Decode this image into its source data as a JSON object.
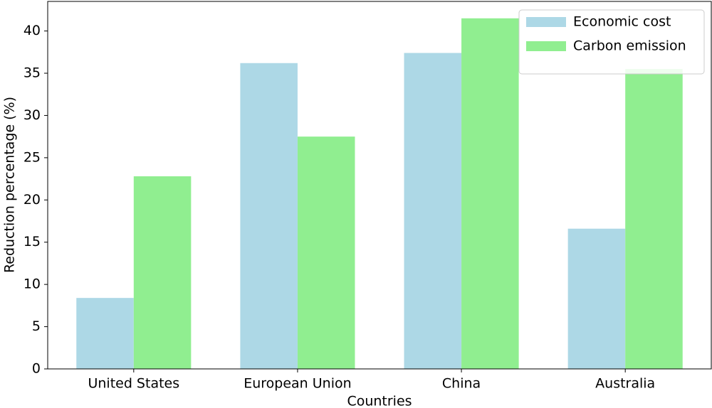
{
  "chart_data": {
    "type": "bar",
    "x_label": "Countries",
    "y_label": "Reduction percentage (%)",
    "categories": [
      "United States",
      "European Union",
      "China",
      "Australia"
    ],
    "series": [
      {
        "name": "Economic cost",
        "color": "#add8e6",
        "values": [
          8.4,
          36.2,
          37.4,
          16.6
        ]
      },
      {
        "name": "Carbon emission",
        "color": "#90ee90",
        "values": [
          22.8,
          27.5,
          41.5,
          35.5
        ]
      }
    ],
    "ylim": [
      0,
      43.5
    ],
    "yticks": [
      0,
      5,
      10,
      15,
      20,
      25,
      30,
      35,
      40
    ],
    "grid": false,
    "legend": "upper right"
  }
}
